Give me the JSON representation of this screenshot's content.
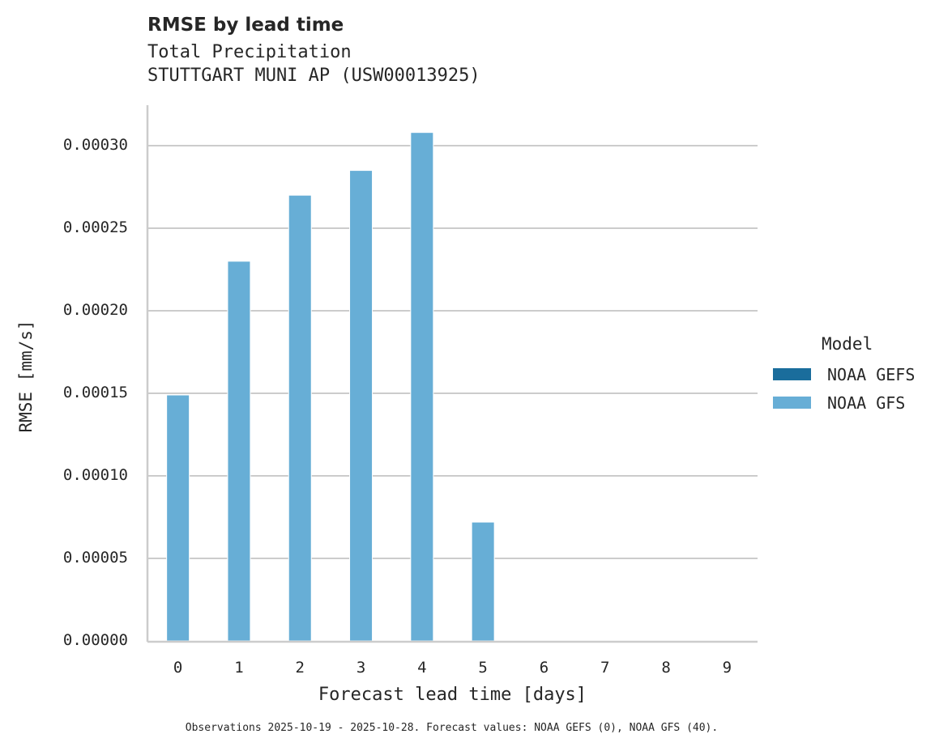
{
  "chart_data": {
    "type": "bar",
    "title": "RMSE by lead time",
    "subtitle": [
      "Total Precipitation",
      "STUTTGART MUNI AP (USW00013925)"
    ],
    "xlabel": "Forecast lead time [days]",
    "ylabel": "RMSE [mm/s]",
    "categories": [
      "0",
      "1",
      "2",
      "3",
      "4",
      "5",
      "6",
      "7",
      "8",
      "9"
    ],
    "series": [
      {
        "name": "NOAA GEFS",
        "color": "#1a6d9c",
        "values": [
          null,
          null,
          null,
          null,
          null,
          null,
          null,
          null,
          null,
          null
        ]
      },
      {
        "name": "NOAA GFS",
        "color": "#67aed6",
        "values": [
          0.000149,
          0.00023,
          0.00027,
          0.000285,
          0.000308,
          7.2e-05,
          null,
          null,
          null,
          null
        ]
      }
    ],
    "yticks": [
      "0.00000",
      "0.00005",
      "0.00010",
      "0.00015",
      "0.00020",
      "0.00025",
      "0.00030"
    ],
    "ylim": [
      0,
      0.000325
    ],
    "grid": true,
    "legend": {
      "title": "Model",
      "position": "right"
    },
    "footnote": "Observations 2025-10-19 - 2025-10-28. Forecast values: NOAA GEFS (0), NOAA GFS (40)."
  },
  "colors": {
    "grid": "#cccccc",
    "axis": "#cccccc",
    "text": "#262626"
  }
}
